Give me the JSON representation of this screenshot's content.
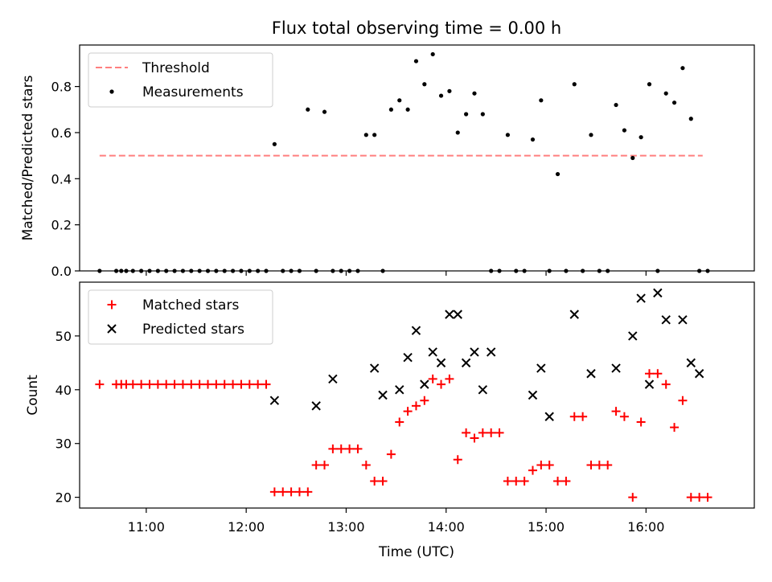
{
  "figure": {
    "title": "Flux total observing time = 0.00 h",
    "xlabel": "Time (UTC)",
    "colors": {
      "threshold": "#ff7f7f",
      "measurements": "#000000",
      "matched": "#ff0000",
      "predicted": "#000000"
    }
  },
  "chart_data": [
    {
      "type": "scatter",
      "title": "Flux total observing time = 0.00 h",
      "xlabel": "",
      "ylabel": "Matched/Predicted stars",
      "xlim": [
        "10:20",
        "17:05"
      ],
      "ylim": [
        0,
        0.98
      ],
      "yticks": [
        0.0,
        0.2,
        0.4,
        0.6,
        0.8
      ],
      "ytick_labels": [
        "0.0",
        "0.2",
        "0.4",
        "0.6",
        "0.8"
      ],
      "legend_position": "top-left",
      "series": [
        {
          "name": "Threshold",
          "kind": "line",
          "style": "dashed",
          "x": [
            "10:32",
            "16:34"
          ],
          "y": [
            0.5,
            0.5
          ]
        },
        {
          "name": "Measurements",
          "kind": "points",
          "x": [
            "10:32",
            "10:42",
            "10:45",
            "10:48",
            "10:52",
            "10:57",
            "11:02",
            "11:07",
            "11:12",
            "11:17",
            "11:22",
            "11:27",
            "11:32",
            "11:37",
            "11:42",
            "11:47",
            "11:52",
            "11:57",
            "12:02",
            "12:07",
            "12:12",
            "12:17",
            "12:22",
            "12:27",
            "12:32",
            "12:37",
            "12:42",
            "12:47",
            "12:52",
            "12:57",
            "13:02",
            "13:07",
            "13:12",
            "13:17",
            "13:22",
            "13:27",
            "13:32",
            "13:37",
            "13:42",
            "13:47",
            "13:52",
            "13:57",
            "14:02",
            "14:07",
            "14:12",
            "14:17",
            "14:22",
            "14:27",
            "14:32",
            "14:37",
            "14:42",
            "14:47",
            "14:52",
            "14:57",
            "15:02",
            "15:07",
            "15:12",
            "15:17",
            "15:22",
            "15:27",
            "15:32",
            "15:37",
            "15:42",
            "15:47",
            "15:52",
            "15:57",
            "16:02",
            "16:07",
            "16:12",
            "16:17",
            "16:22",
            "16:27",
            "16:32",
            "16:37"
          ],
          "y": [
            0,
            0,
            0,
            0,
            0,
            0,
            0,
            0,
            0,
            0,
            0,
            0,
            0,
            0,
            0,
            0,
            0,
            0,
            0,
            0,
            0,
            0.55,
            0,
            0,
            0,
            0.7,
            0,
            0.69,
            0,
            0,
            0,
            0,
            0.59,
            0.59,
            0,
            0.7,
            0.74,
            0.7,
            0.91,
            0.81,
            0.94,
            0.76,
            0.78,
            0.6,
            0.68,
            0.77,
            0.68,
            0,
            0,
            0.59,
            0,
            0,
            0.57,
            0.74,
            0,
            0.42,
            0,
            0.81,
            0,
            0.59,
            0,
            0,
            0.72,
            0.61,
            0.49,
            0.58,
            0.81,
            0,
            0.77,
            0.73,
            0.88,
            0.66,
            0,
            0
          ]
        }
      ]
    },
    {
      "type": "scatter",
      "title": "",
      "xlabel": "Time (UTC)",
      "ylabel": "Count",
      "xlim": [
        "10:20",
        "17:05"
      ],
      "ylim": [
        18,
        60
      ],
      "xticks": [
        "11:00",
        "12:00",
        "13:00",
        "14:00",
        "15:00",
        "16:00"
      ],
      "yticks": [
        20,
        30,
        40,
        50
      ],
      "legend_position": "top-left",
      "series": [
        {
          "name": "Matched stars",
          "kind": "points",
          "marker": "plus",
          "x": [
            "10:32",
            "10:42",
            "10:45",
            "10:48",
            "10:52",
            "10:57",
            "11:02",
            "11:07",
            "11:12",
            "11:17",
            "11:22",
            "11:27",
            "11:32",
            "11:37",
            "11:42",
            "11:47",
            "11:52",
            "11:57",
            "12:02",
            "12:07",
            "12:12",
            "12:17",
            "12:22",
            "12:27",
            "12:32",
            "12:37",
            "12:42",
            "12:47",
            "12:52",
            "12:57",
            "13:02",
            "13:07",
            "13:12",
            "13:17",
            "13:22",
            "13:27",
            "13:32",
            "13:37",
            "13:42",
            "13:47",
            "13:52",
            "13:57",
            "14:02",
            "14:07",
            "14:12",
            "14:17",
            "14:22",
            "14:27",
            "14:32",
            "14:37",
            "14:42",
            "14:47",
            "14:52",
            "14:57",
            "15:02",
            "15:07",
            "15:12",
            "15:17",
            "15:22",
            "15:27",
            "15:32",
            "15:37",
            "15:42",
            "15:47",
            "15:52",
            "15:57",
            "16:02",
            "16:07",
            "16:12",
            "16:17",
            "16:22",
            "16:27",
            "16:32",
            "16:37"
          ],
          "y": [
            41,
            41,
            41,
            41,
            41,
            41,
            41,
            41,
            41,
            41,
            41,
            41,
            41,
            41,
            41,
            41,
            41,
            41,
            41,
            41,
            41,
            21,
            21,
            21,
            21,
            21,
            26,
            26,
            29,
            29,
            29,
            29,
            26,
            23,
            23,
            28,
            34,
            36,
            37,
            38,
            42,
            41,
            42,
            27,
            32,
            31,
            32,
            32,
            32,
            23,
            23,
            23,
            25,
            26,
            26,
            23,
            23,
            35,
            35,
            26,
            26,
            26,
            36,
            35,
            20,
            34,
            43,
            43,
            41,
            33,
            38,
            20,
            20,
            20
          ]
        },
        {
          "name": "Predicted stars",
          "kind": "points",
          "marker": "x",
          "x": [
            "12:17",
            "12:42",
            "12:52",
            "13:17",
            "13:22",
            "13:32",
            "13:37",
            "13:42",
            "13:47",
            "13:52",
            "13:57",
            "14:02",
            "14:07",
            "14:12",
            "14:17",
            "14:22",
            "14:27",
            "14:52",
            "14:57",
            "15:02",
            "15:17",
            "15:27",
            "15:42",
            "15:52",
            "15:57",
            "16:02",
            "16:07",
            "16:12",
            "16:22",
            "16:27",
            "16:32"
          ],
          "y": [
            38,
            37,
            42,
            44,
            39,
            40,
            46,
            51,
            41,
            47,
            45,
            54,
            54,
            45,
            47,
            40,
            47,
            39,
            44,
            35,
            54,
            43,
            44,
            50,
            57,
            41,
            58,
            53,
            53,
            45,
            43
          ]
        }
      ]
    }
  ]
}
